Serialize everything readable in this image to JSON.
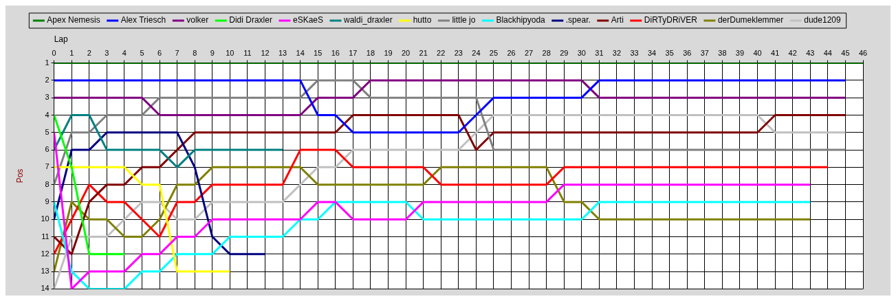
{
  "chart_data": {
    "type": "line",
    "xlabel": "Lap",
    "ylabel": "Pos",
    "x": [
      0,
      1,
      2,
      3,
      4,
      5,
      6,
      7,
      8,
      9,
      10,
      11,
      12,
      13,
      14,
      15,
      16,
      17,
      18,
      19,
      20,
      21,
      22,
      23,
      24,
      25,
      26,
      27,
      28,
      29,
      30,
      31,
      32,
      33,
      34,
      35,
      36,
      37,
      38,
      39,
      40,
      41,
      42,
      43,
      44,
      45,
      46
    ],
    "xlim": [
      0,
      46
    ],
    "xticks": [
      0,
      1,
      2,
      3,
      4,
      5,
      6,
      7,
      8,
      9,
      10,
      11,
      12,
      13,
      14,
      15,
      16,
      17,
      18,
      19,
      20,
      21,
      22,
      23,
      24,
      25,
      26,
      27,
      28,
      29,
      30,
      31,
      32,
      33,
      34,
      35,
      36,
      37,
      38,
      39,
      40,
      41,
      42,
      43,
      44,
      45,
      46
    ],
    "ylim": [
      14,
      1
    ],
    "yticks": [
      1,
      2,
      3,
      4,
      5,
      6,
      7,
      8,
      9,
      10,
      11,
      12,
      13,
      14
    ],
    "grid": true,
    "legend": "top",
    "marker": "none",
    "line_style": "solid",
    "series": [
      {
        "name": "Apex Nemesis",
        "color": "#008000",
        "values": [
          1,
          1,
          1,
          1,
          1,
          1,
          1,
          1,
          1,
          1,
          1,
          1,
          1,
          1,
          1,
          1,
          1,
          1,
          1,
          1,
          1,
          1,
          1,
          1,
          1,
          1,
          1,
          1,
          1,
          1,
          1,
          1,
          1,
          1,
          1,
          1,
          1,
          1,
          1,
          1,
          1,
          1,
          1,
          1,
          1,
          1,
          1
        ]
      },
      {
        "name": "Alex Triesch",
        "color": "#0000ff",
        "values": [
          2,
          2,
          2,
          2,
          2,
          2,
          2,
          2,
          2,
          2,
          2,
          2,
          2,
          2,
          2,
          4,
          4,
          5,
          5,
          5,
          5,
          5,
          5,
          5,
          4,
          3,
          3,
          3,
          3,
          3,
          3,
          2,
          2,
          2,
          2,
          2,
          2,
          2,
          2,
          2,
          2,
          2,
          2,
          2,
          2,
          2,
          null
        ]
      },
      {
        "name": "volker",
        "color": "#800080",
        "values": [
          3,
          3,
          3,
          3,
          3,
          3,
          4,
          4,
          4,
          4,
          4,
          4,
          4,
          4,
          4,
          3,
          3,
          3,
          2,
          2,
          2,
          2,
          2,
          2,
          2,
          2,
          2,
          2,
          2,
          2,
          2,
          3,
          3,
          3,
          3,
          3,
          3,
          3,
          3,
          3,
          3,
          3,
          3,
          3,
          3,
          3,
          null
        ]
      },
      {
        "name": "Didi Draxler",
        "color": "#00ff00",
        "values": [
          4,
          7,
          12,
          12,
          12,
          null,
          null,
          null,
          null,
          null,
          null,
          null,
          null,
          null,
          null,
          null,
          null,
          null,
          null,
          null,
          null,
          null,
          null,
          null,
          null,
          null,
          null,
          null,
          null,
          null,
          null,
          null,
          null,
          null,
          null,
          null,
          null,
          null,
          null,
          null,
          null,
          null,
          null,
          null,
          null,
          null,
          null
        ]
      },
      {
        "name": "eSKaeS",
        "color": "#ff00ff",
        "values": [
          5,
          14,
          13,
          13,
          13,
          12,
          12,
          11,
          11,
          10,
          10,
          10,
          10,
          10,
          10,
          9,
          9,
          10,
          10,
          10,
          10,
          9,
          9,
          9,
          9,
          9,
          9,
          9,
          9,
          8,
          8,
          8,
          8,
          8,
          8,
          8,
          8,
          8,
          8,
          8,
          8,
          8,
          8,
          8,
          null,
          null,
          null
        ]
      },
      {
        "name": "waldi_draxler",
        "color": "#008080",
        "values": [
          6,
          4,
          4,
          6,
          6,
          6,
          6,
          7,
          6,
          6,
          6,
          6,
          6,
          6,
          null,
          null,
          null,
          null,
          null,
          null,
          null,
          null,
          null,
          null,
          null,
          null,
          null,
          null,
          null,
          null,
          null,
          null,
          null,
          null,
          null,
          null,
          null,
          null,
          null,
          null,
          null,
          null,
          null,
          null,
          null,
          null,
          null
        ]
      },
      {
        "name": "hutto",
        "color": "#ffff00",
        "values": [
          7,
          7,
          7,
          7,
          7,
          8,
          8,
          13,
          13,
          13,
          13,
          null,
          null,
          null,
          null,
          null,
          null,
          null,
          null,
          null,
          null,
          null,
          null,
          null,
          null,
          null,
          null,
          null,
          null,
          null,
          null,
          null,
          null,
          null,
          null,
          null,
          null,
          null,
          null,
          null,
          null,
          null,
          null,
          null,
          null,
          null,
          null
        ]
      },
      {
        "name": "little jo",
        "color": "#808080",
        "values": [
          8,
          5,
          5,
          4,
          4,
          4,
          3,
          3,
          3,
          3,
          3,
          3,
          3,
          3,
          3,
          2,
          2,
          2,
          3,
          3,
          3,
          3,
          3,
          3,
          3,
          6,
          6,
          6,
          6,
          6,
          6,
          6,
          6,
          6,
          6,
          6,
          6,
          6,
          6,
          6,
          6,
          6,
          6,
          6,
          6,
          6,
          null
        ]
      },
      {
        "name": "Blackhipyoda",
        "color": "#00ffff",
        "values": [
          9,
          13,
          14,
          14,
          14,
          13,
          13,
          12,
          12,
          12,
          11,
          11,
          11,
          11,
          10,
          10,
          9,
          9,
          9,
          9,
          9,
          10,
          10,
          10,
          10,
          10,
          10,
          10,
          10,
          10,
          10,
          9,
          9,
          9,
          9,
          9,
          9,
          9,
          9,
          9,
          9,
          9,
          9,
          9,
          null,
          null,
          null
        ]
      },
      {
        "name": ".spear.",
        "color": "#000080",
        "values": [
          10,
          6,
          6,
          5,
          5,
          5,
          5,
          5,
          7,
          11,
          12,
          12,
          12,
          null,
          null,
          null,
          null,
          null,
          null,
          null,
          null,
          null,
          null,
          null,
          null,
          null,
          null,
          null,
          null,
          null,
          null,
          null,
          null,
          null,
          null,
          null,
          null,
          null,
          null,
          null,
          null,
          null,
          null,
          null,
          null,
          null,
          null
        ]
      },
      {
        "name": "Arti",
        "color": "#800000",
        "values": [
          11,
          12,
          9,
          8,
          8,
          7,
          7,
          6,
          5,
          5,
          5,
          5,
          5,
          5,
          5,
          5,
          5,
          4,
          4,
          4,
          4,
          4,
          4,
          4,
          6,
          5,
          5,
          5,
          5,
          5,
          5,
          5,
          5,
          5,
          5,
          5,
          5,
          5,
          5,
          5,
          5,
          4,
          4,
          4,
          4,
          4,
          null
        ]
      },
      {
        "name": "DiRTyDRiVER",
        "color": "#ff0000",
        "values": [
          12,
          10,
          8,
          9,
          9,
          10,
          11,
          9,
          9,
          8,
          8,
          8,
          8,
          8,
          6,
          6,
          6,
          7,
          7,
          7,
          7,
          7,
          8,
          8,
          8,
          8,
          8,
          8,
          8,
          7,
          7,
          7,
          7,
          7,
          7,
          7,
          7,
          7,
          7,
          7,
          7,
          7,
          7,
          7,
          7,
          null,
          null
        ]
      },
      {
        "name": "derDumeklemmer",
        "color": "#808000",
        "values": [
          13,
          9,
          10,
          10,
          11,
          11,
          10,
          8,
          8,
          7,
          7,
          7,
          7,
          7,
          7,
          8,
          8,
          8,
          8,
          8,
          8,
          8,
          7,
          7,
          7,
          7,
          7,
          7,
          7,
          9,
          9,
          10,
          10,
          10,
          10,
          10,
          10,
          10,
          10,
          10,
          10,
          10,
          10,
          10,
          null,
          null,
          null
        ]
      },
      {
        "name": "dude1209",
        "color": "#c0c0c0",
        "values": [
          14,
          11,
          11,
          11,
          10,
          9,
          9,
          10,
          10,
          9,
          9,
          9,
          9,
          9,
          8,
          7,
          7,
          6,
          6,
          6,
          6,
          6,
          6,
          6,
          5,
          4,
          4,
          4,
          4,
          4,
          4,
          4,
          4,
          4,
          4,
          4,
          4,
          4,
          4,
          4,
          4,
          5,
          5,
          5,
          5,
          5,
          null
        ]
      }
    ]
  }
}
